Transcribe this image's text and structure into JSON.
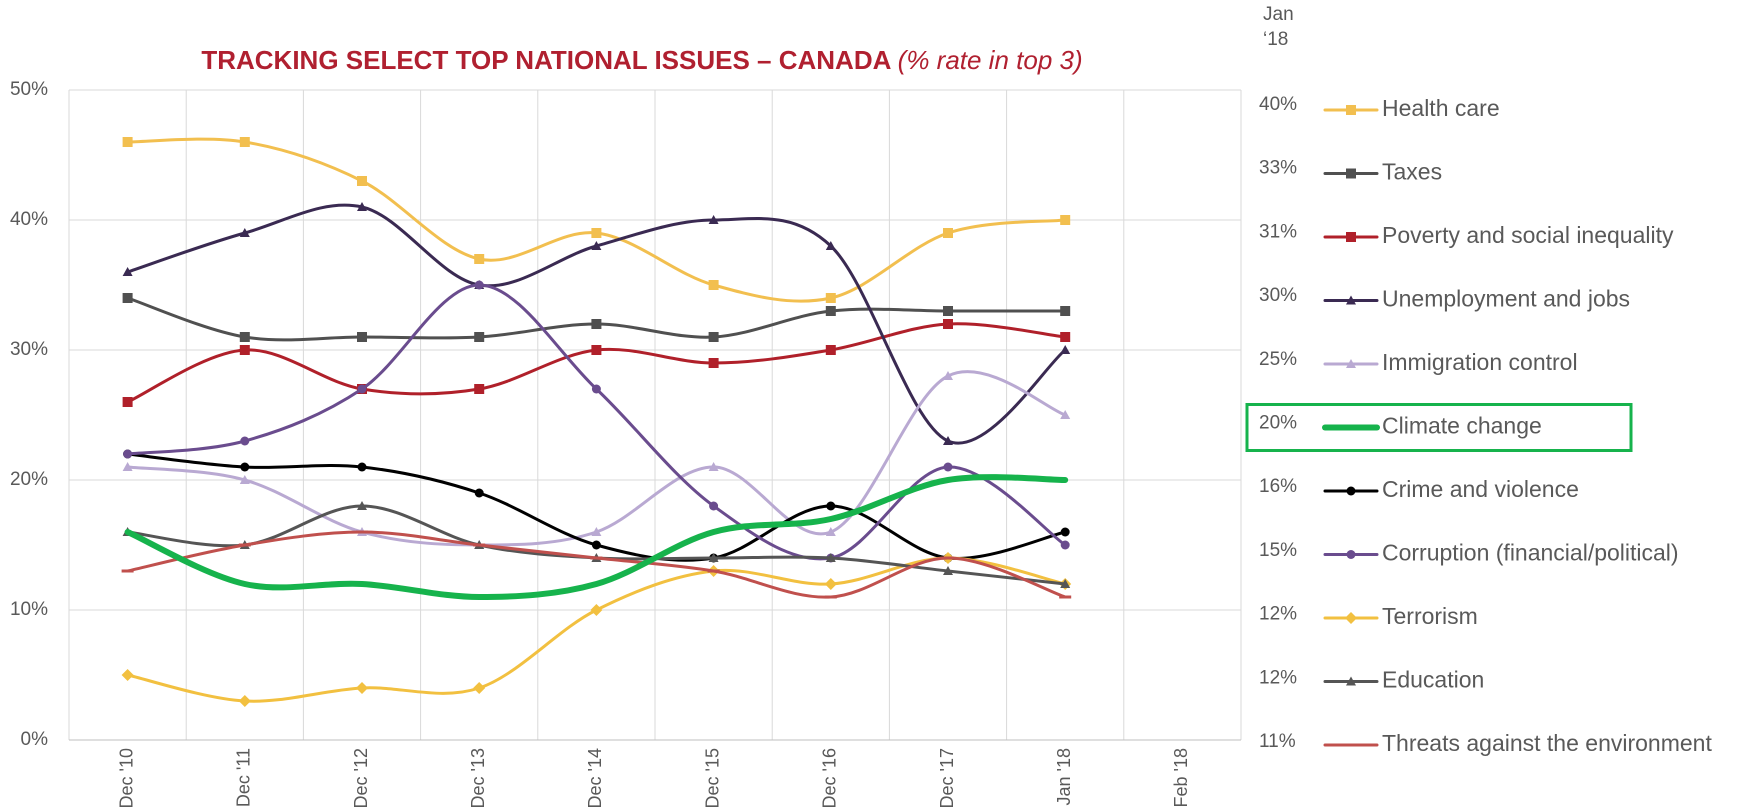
{
  "chart_data": {
    "type": "line",
    "title": "TRACKING SELECT TOP NATIONAL ISSUES – CANADA",
    "subtitle": "(% rate in top 3)",
    "categories": [
      "Dec '10",
      "Dec '11",
      "Dec '12",
      "Dec '13",
      "Dec '14",
      "Dec '15",
      "Dec '16",
      "Dec '17",
      "Jan '18",
      "Feb '18"
    ],
    "ylim": [
      0,
      50
    ],
    "yticks": [
      {
        "value": 0,
        "label": "0%"
      },
      {
        "value": 10,
        "label": "10%"
      },
      {
        "value": 20,
        "label": "20%"
      },
      {
        "value": 30,
        "label": "30%"
      },
      {
        "value": 40,
        "label": "40%"
      },
      {
        "value": 50,
        "label": "50%"
      }
    ],
    "grid": true,
    "smooth": true,
    "highlight_series": 5,
    "side_column": {
      "title": [
        "Jan",
        "‘18"
      ],
      "labels": [
        "40%",
        "33%",
        "31%",
        "30%",
        "25%",
        "20%",
        "16%",
        "15%",
        "12%",
        "12%",
        "11%"
      ]
    },
    "series": [
      {
        "name": "Health care",
        "color": "#f2bf4f",
        "marker": "square",
        "values": [
          46,
          46,
          43,
          37,
          39,
          35,
          34,
          39,
          40,
          null
        ]
      },
      {
        "name": "Taxes",
        "color": "#505050",
        "marker": "square",
        "values": [
          34,
          31,
          31,
          31,
          32,
          31,
          33,
          33,
          33,
          null
        ]
      },
      {
        "name": "Poverty and social inequality",
        "color": "#b0202a",
        "marker": "square",
        "values": [
          26,
          30,
          27,
          27,
          30,
          29,
          30,
          32,
          31,
          null
        ]
      },
      {
        "name": "Unemployment and jobs",
        "color": "#3a2a52",
        "marker": "triangle",
        "values": [
          36,
          39,
          41,
          35,
          38,
          40,
          38,
          23,
          30,
          null
        ]
      },
      {
        "name": "Immigration control",
        "color": "#b9a9d2",
        "marker": "triangle",
        "values": [
          21,
          20,
          16,
          15,
          16,
          21,
          16,
          28,
          25,
          null
        ]
      },
      {
        "name": "Climate change",
        "color": "#16b34c",
        "marker": "none",
        "width": 6,
        "values": [
          16,
          12,
          12,
          11,
          12,
          16,
          17,
          20,
          20,
          null
        ]
      },
      {
        "name": "Crime and violence",
        "color": "#000000",
        "marker": "circle",
        "values": [
          22,
          21,
          21,
          19,
          15,
          14,
          18,
          14,
          16,
          null
        ]
      },
      {
        "name": "Corruption (financial/political)",
        "color": "#6a4c8e",
        "marker": "circle",
        "values": [
          22,
          23,
          27,
          35,
          27,
          18,
          14,
          21,
          15,
          null
        ]
      },
      {
        "name": "Terrorism",
        "color": "#f2c040",
        "marker": "diamond",
        "values": [
          5,
          3,
          4,
          4,
          10,
          13,
          12,
          14,
          12,
          null
        ]
      },
      {
        "name": "Education",
        "color": "#555555",
        "marker": "triangle",
        "values": [
          16,
          15,
          18,
          15,
          14,
          14,
          14,
          13,
          12,
          null
        ]
      },
      {
        "name": "Threats against the environment",
        "color": "#c0504d",
        "marker": "dash",
        "values": [
          13,
          15,
          16,
          15,
          14,
          13,
          11,
          14,
          11,
          null
        ]
      }
    ]
  }
}
